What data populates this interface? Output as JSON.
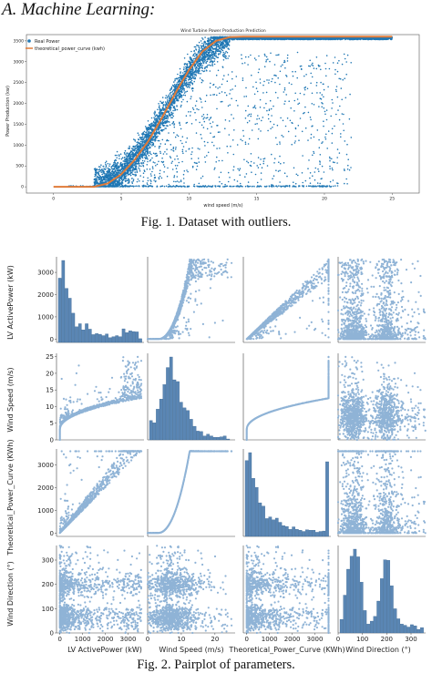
{
  "section_heading": "A.  Machine Learning:",
  "figure1": {
    "caption": "Fig. 1.   Dataset with outliers.",
    "title": "Wind Turbine Power Production Prediction",
    "xlabel": "wind speed (m/s)",
    "ylabel": "Power Production (kw)",
    "legend": [
      "Real Power",
      "theoretical_power_curve (kwh)"
    ],
    "xticks": [
      "0",
      "5",
      "10",
      "15",
      "20",
      "25"
    ],
    "yticks": [
      "0",
      "500",
      "1000",
      "1500",
      "2000",
      "2500",
      "3000",
      "3500"
    ],
    "colors": {
      "scatter": "#1f77b4",
      "curve": "#e07b39"
    }
  },
  "figure2": {
    "caption": "Fig. 2.   Pairplot of parameters.",
    "variables": [
      "LV ActivePower (kW)",
      "Wind Speed (m/s)",
      "Theoretical_Power_Curve (KWh)",
      "Wind Direction (°)"
    ],
    "xticks": [
      [
        "0",
        "1000",
        "2000",
        "3000"
      ],
      [
        "0",
        "10",
        "20"
      ],
      [
        "0",
        "1000",
        "2000",
        "3000"
      ],
      [
        "0",
        "100",
        "200",
        "300"
      ]
    ],
    "yticks": [
      [
        "0",
        "1000",
        "2000",
        "3000"
      ],
      [
        "0",
        "5",
        "10",
        "15",
        "20",
        "25"
      ],
      [
        "0",
        "1000",
        "2000",
        "3000"
      ],
      [
        "0",
        "100",
        "200",
        "300"
      ]
    ],
    "colors": {
      "points": "#8fb3d6",
      "hist": "#5a86b4"
    }
  },
  "chart_data": [
    {
      "type": "scatter",
      "title": "Wind Turbine Power Production Prediction",
      "xlabel": "wind speed (m/s)",
      "ylabel": "Power Production (kw)",
      "xlim": [
        -2,
        27
      ],
      "ylim": [
        -150,
        3650
      ],
      "series": [
        {
          "name": "Real Power",
          "style": "scatter",
          "x": [
            2,
            4,
            5,
            6,
            7,
            8,
            9,
            10,
            11,
            12,
            13,
            14,
            15,
            16,
            17,
            18,
            19,
            20,
            21,
            22,
            23,
            24,
            25
          ],
          "y": [
            0,
            150,
            350,
            700,
            1150,
            1650,
            2200,
            2750,
            3150,
            3450,
            3580,
            3600,
            3600,
            3600,
            3600,
            3600,
            3600,
            3600,
            3600,
            3600,
            3600,
            3600,
            3600
          ]
        },
        {
          "name": "theoretical_power_curve (kwh)",
          "style": "line",
          "x": [
            3,
            4,
            5,
            6,
            7,
            8,
            9,
            10,
            11,
            12,
            13,
            14,
            15,
            20,
            25
          ],
          "y": [
            0,
            80,
            300,
            650,
            1100,
            1650,
            2250,
            2800,
            3250,
            3500,
            3590,
            3600,
            3600,
            3600,
            3600
          ]
        }
      ]
    },
    {
      "type": "scatter",
      "title": "",
      "variables": [
        "LV ActivePower (kW)",
        "Wind Speed (m/s)",
        "Theoretical_Power_Curve (KWh)",
        "Wind Direction (°)"
      ],
      "ranges": [
        [
          -150,
          3700
        ],
        [
          0,
          26
        ],
        [
          -150,
          3700
        ],
        [
          0,
          360
        ]
      ],
      "diagonal": "histogram"
    }
  ]
}
